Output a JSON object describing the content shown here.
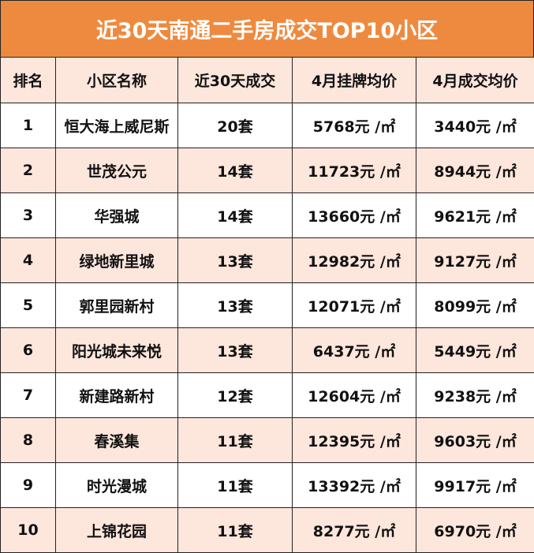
{
  "title": "近30天南通二手房成交TOP10小区",
  "table": {
    "header": [
      "排名",
      "小区名称",
      "近30天成交",
      "4月挂牌均价",
      "4月成交均价"
    ],
    "rows": [
      [
        "1",
        "恒大海上威尼斯",
        "20套",
        "5768元 /㎡",
        "3440元 /㎡"
      ],
      [
        "2",
        "世茂公元",
        "14套",
        "11723元 /㎡",
        "8944元 /㎡"
      ],
      [
        "3",
        "华强城",
        "14套",
        "13660元 /㎡",
        "9621元 /㎡"
      ],
      [
        "4",
        "绿地新里城",
        "13套",
        "12982元 /㎡",
        "9127元 /㎡"
      ],
      [
        "5",
        "郭里园新村",
        "13套",
        "12071元 /㎡",
        "8099元 /㎡"
      ],
      [
        "6",
        "阳光城未来悦",
        "13套",
        "6437元 /㎡",
        "5449元 /㎡"
      ],
      [
        "7",
        "新建路新村",
        "12套",
        "12604元 /㎡",
        "9238元 /㎡"
      ],
      [
        "8",
        "春溪集",
        "11套",
        "12395元 /㎡",
        "9603元 /㎡"
      ],
      [
        "9",
        "时光漫城",
        "11套",
        "13392元 /㎡",
        "9917元 /㎡"
      ],
      [
        "10",
        "上锦花园",
        "11套",
        "8277元 /㎡",
        "6970元 /㎡"
      ]
    ]
  }
}
